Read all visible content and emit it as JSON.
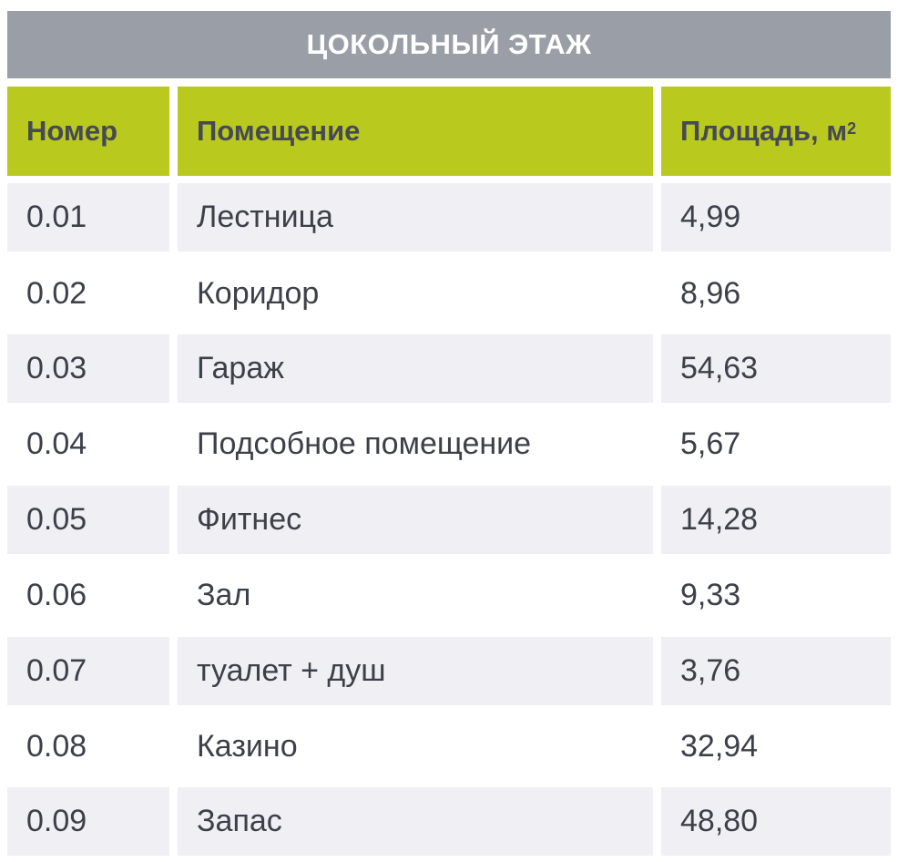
{
  "table": {
    "title": "ЦОКОЛЬНЫЙ ЭТАЖ",
    "headers": {
      "number": "Номер",
      "room": "Помещение",
      "area": "Площадь, м",
      "area_sup": "2"
    },
    "rows": [
      {
        "number": "0.01",
        "room": "Лестница",
        "area": "4,99"
      },
      {
        "number": "0.02",
        "room": "Коридор",
        "area": "8,96"
      },
      {
        "number": "0.03",
        "room": "Гараж",
        "area": "54,63"
      },
      {
        "number": "0.04",
        "room": "Подсобное помещение",
        "area": "5,67"
      },
      {
        "number": "0.05",
        "room": "Фитнес",
        "area": "14,28"
      },
      {
        "number": "0.06",
        "room": "Зал",
        "area": "9,33"
      },
      {
        "number": "0.07",
        "room": "туалет + душ",
        "area": "3,76"
      },
      {
        "number": "0.08",
        "room": "Казино",
        "area": "32,94"
      },
      {
        "number": "0.09",
        "room": "Запас",
        "area": "48,80"
      }
    ]
  },
  "colors": {
    "title_bg": "#9a9ea6",
    "header_bg": "#bac91d",
    "row_shade": "#efeff4",
    "text": "#3d4049"
  }
}
